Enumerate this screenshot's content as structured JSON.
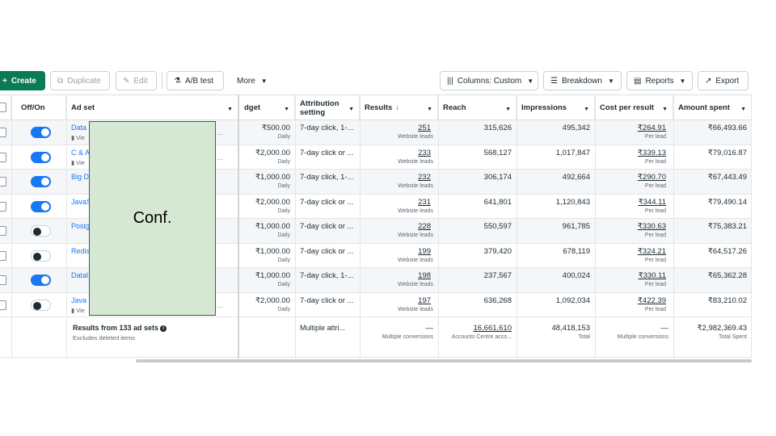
{
  "toolbar": {
    "create": "Create",
    "duplicate": "Duplicate",
    "edit": "Edit",
    "ab_test": "A/B test",
    "more": "More",
    "columns": "Columns: Custom",
    "breakdown": "Breakdown",
    "reports": "Reports",
    "export": "Export"
  },
  "headers": {
    "off_on": "Off/On",
    "ad_set": "Ad set",
    "budget": "dget",
    "attribution": "Attribution setting",
    "results": "Results",
    "reach": "Reach",
    "impressions": "Impressions",
    "cost_per_result": "Cost per result",
    "amount_spent": "Amount spent"
  },
  "rows": [
    {
      "name": "Data",
      "sub": "Vie",
      "on": true,
      "budget": "₹500.00",
      "budget_sub": "Daily",
      "attribution": "7-day click, 1-...",
      "results": "251",
      "results_sub": "Website leads",
      "reach": "315,626",
      "impressions": "495,342",
      "cpr": "₹264.91",
      "cpr_sub": "Per lead",
      "spent": "₹66,493.66"
    },
    {
      "name": "C & A",
      "sub": "Vie",
      "on": true,
      "budget": "₹2,000.00",
      "budget_sub": "Daily",
      "attribution": "7-day click or ...",
      "results": "233",
      "results_sub": "Website leads",
      "reach": "568,127",
      "impressions": "1,017,847",
      "cpr": "₹339.13",
      "cpr_sub": "Per lead",
      "spent": "₹79,016.87"
    },
    {
      "name": "Big D",
      "sub": "",
      "on": true,
      "budget": "₹1,000.00",
      "budget_sub": "Daily",
      "attribution": "7-day click, 1-...",
      "results": "232",
      "results_sub": "Website leads",
      "reach": "306,174",
      "impressions": "492,664",
      "cpr": "₹290.70",
      "cpr_sub": "Per lead",
      "spent": "₹67,443.49"
    },
    {
      "name": "JavaS",
      "sub": "",
      "on": true,
      "budget": "₹2,000.00",
      "budget_sub": "Daily",
      "attribution": "7-day click or ...",
      "results": "231",
      "results_sub": "Website leads",
      "reach": "641,801",
      "impressions": "1,120,843",
      "cpr": "₹344.11",
      "cpr_sub": "Per lead",
      "spent": "₹79,490.14"
    },
    {
      "name": "Postg",
      "sub": "",
      "on": false,
      "budget": "₹1,000.00",
      "budget_sub": "Daily",
      "attribution": "7-day click or ...",
      "results": "228",
      "results_sub": "Website leads",
      "reach": "550,597",
      "impressions": "961,785",
      "cpr": "₹330.63",
      "cpr_sub": "Per lead",
      "spent": "₹75,383.21"
    },
    {
      "name": "Redis",
      "sub": "",
      "on": false,
      "budget": "₹1,000.00",
      "budget_sub": "Daily",
      "attribution": "7-day click or ...",
      "results": "199",
      "results_sub": "Website leads",
      "reach": "379,420",
      "impressions": "678,119",
      "cpr": "₹324.21",
      "cpr_sub": "Per lead",
      "spent": "₹64,517.26"
    },
    {
      "name": "Datal",
      "sub": "",
      "on": true,
      "budget": "₹1,000.00",
      "budget_sub": "Daily",
      "attribution": "7-day click, 1-...",
      "results": "198",
      "results_sub": "Website leads",
      "reach": "237,567",
      "impressions": "400,024",
      "cpr": "₹330.11",
      "cpr_sub": "Per lead",
      "spent": "₹65,362.28"
    },
    {
      "name": "Java",
      "sub": "Vie",
      "on": false,
      "budget": "₹2,000.00",
      "budget_sub": "Daily",
      "attribution": "7-day click or ...",
      "results": "197",
      "results_sub": "Website leads",
      "reach": "636,268",
      "impressions": "1,092,034",
      "cpr": "₹422.39",
      "cpr_sub": "Per lead",
      "spent": "₹83,210.02"
    }
  ],
  "footer": {
    "title": "Results from 133 ad sets",
    "sub": "Excludes deleted items",
    "attribution": "Multiple attri...",
    "results": "—",
    "results_sub": "Multiple conversions",
    "reach": "16,661,610",
    "reach_sub": "Accounts Centre acco...",
    "impressions": "48,418,153",
    "impressions_sub": "Total",
    "cpr": "—",
    "cpr_sub": "Multiple conversions",
    "spent": "₹2,982,369.43",
    "spent_sub": "Total Spent"
  },
  "overlay_label": "Conf.",
  "colors": {
    "accent": "#1877f2",
    "create": "#0a7a57",
    "overlay": "#d5e8d4"
  }
}
